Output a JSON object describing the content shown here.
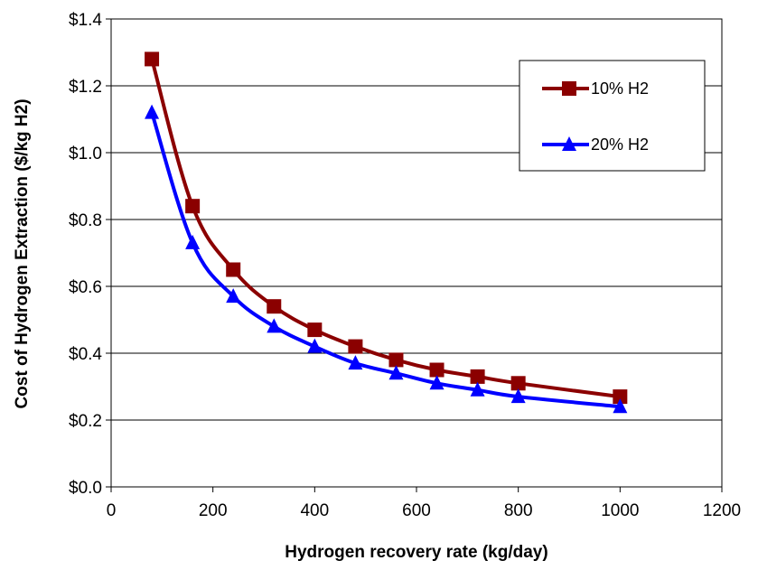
{
  "chart_data": {
    "type": "line",
    "title": "",
    "xlabel": "Hydrogen recovery rate (kg/day)",
    "ylabel": "Cost of Hydrogen Extraction ($/kg H2)",
    "xlim": [
      0,
      1200
    ],
    "ylim": [
      0,
      1.4
    ],
    "x_ticks": [
      0,
      200,
      400,
      600,
      800,
      1000,
      1200
    ],
    "x_tick_labels": [
      "0",
      "200",
      "400",
      "600",
      "800",
      "1000",
      "1200"
    ],
    "y_ticks": [
      0,
      0.2,
      0.4,
      0.6,
      0.8,
      1.0,
      1.2,
      1.4
    ],
    "y_tick_labels": [
      "$0.0",
      "$0.2",
      "$0.4",
      "$0.6",
      "$0.8",
      "$1.0",
      "$1.2",
      "$1.4"
    ],
    "grid": "horizontal",
    "legend_position": "top-right",
    "series": [
      {
        "name": "10% H2",
        "color": "#8b0000",
        "marker": "square",
        "x": [
          80,
          160,
          240,
          320,
          400,
          480,
          560,
          640,
          720,
          800,
          1000
        ],
        "y": [
          1.28,
          0.84,
          0.65,
          0.54,
          0.47,
          0.42,
          0.38,
          0.35,
          0.33,
          0.31,
          0.27
        ]
      },
      {
        "name": "20% H2",
        "color": "#0000ff",
        "marker": "triangle",
        "x": [
          80,
          160,
          240,
          320,
          400,
          480,
          560,
          640,
          720,
          800,
          1000
        ],
        "y": [
          1.12,
          0.73,
          0.57,
          0.48,
          0.42,
          0.37,
          0.34,
          0.31,
          0.29,
          0.27,
          0.24
        ]
      }
    ]
  }
}
